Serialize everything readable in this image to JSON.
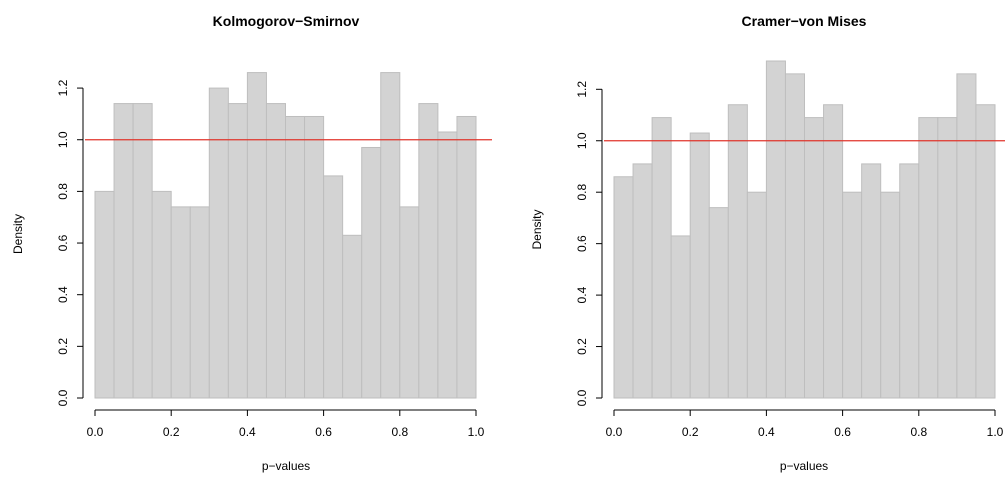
{
  "chart_data": [
    {
      "type": "bar",
      "title": "Kolmogorov−Smirnov",
      "xlabel": "p−values",
      "ylabel": "Density",
      "xlim": [
        0,
        1
      ],
      "ylim": [
        0,
        1.27
      ],
      "bin_edges": [
        0.0,
        0.05,
        0.1,
        0.15,
        0.2,
        0.25,
        0.3,
        0.35,
        0.4,
        0.45,
        0.5,
        0.55,
        0.6,
        0.65,
        0.7,
        0.75,
        0.8,
        0.85,
        0.9,
        0.95,
        1.0
      ],
      "values": [
        0.8,
        1.14,
        1.14,
        0.8,
        0.74,
        0.74,
        1.2,
        1.14,
        1.26,
        1.14,
        1.09,
        1.09,
        0.86,
        0.63,
        0.97,
        1.26,
        0.74,
        1.14,
        1.03,
        1.09
      ],
      "reference_line": 1.0,
      "x_ticks": [
        "0.0",
        "0.2",
        "0.4",
        "0.6",
        "0.8",
        "1.0"
      ],
      "x_tick_values": [
        0,
        0.2,
        0.4,
        0.6,
        0.8,
        1.0
      ],
      "y_ticks": [
        "0.0",
        "0.2",
        "0.4",
        "0.6",
        "0.8",
        "1.0",
        "1.2"
      ],
      "y_tick_values": [
        0,
        0.2,
        0.4,
        0.6,
        0.8,
        1.0,
        1.2
      ],
      "bar_fill": "#d3d3d3",
      "bar_stroke": "#bebebe",
      "line_color": "#e0352b"
    },
    {
      "type": "bar",
      "title": "Cramer−von Mises",
      "xlabel": "p−values",
      "ylabel": "Density",
      "xlim": [
        0,
        1
      ],
      "ylim": [
        0,
        1.31
      ],
      "bin_edges": [
        0.0,
        0.05,
        0.1,
        0.15,
        0.2,
        0.25,
        0.3,
        0.35,
        0.4,
        0.45,
        0.5,
        0.55,
        0.6,
        0.65,
        0.7,
        0.75,
        0.8,
        0.85,
        0.9,
        0.95,
        1.0
      ],
      "values": [
        0.86,
        0.91,
        1.09,
        0.63,
        1.03,
        0.74,
        1.14,
        0.8,
        1.31,
        1.26,
        1.09,
        1.14,
        0.8,
        0.91,
        0.8,
        0.91,
        1.09,
        1.09,
        1.26,
        1.14
      ],
      "reference_line": 1.0,
      "x_ticks": [
        "0.0",
        "0.2",
        "0.4",
        "0.6",
        "0.8",
        "1.0"
      ],
      "x_tick_values": [
        0,
        0.2,
        0.4,
        0.6,
        0.8,
        1.0
      ],
      "y_ticks": [
        "0.0",
        "0.2",
        "0.4",
        "0.6",
        "0.8",
        "1.0",
        "1.2"
      ],
      "y_tick_values": [
        0,
        0.2,
        0.4,
        0.6,
        0.8,
        1.0,
        1.2
      ],
      "bar_fill": "#d3d3d3",
      "bar_stroke": "#bebebe",
      "line_color": "#e0352b"
    }
  ]
}
